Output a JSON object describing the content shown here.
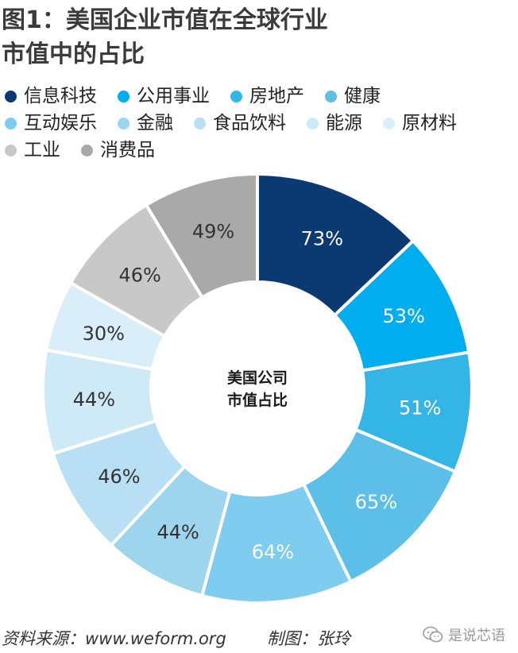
{
  "title": {
    "line1": "图1：美国企业市值在全球行业",
    "line2": "市值中的占比"
  },
  "legend": [
    {
      "label": "信息科技",
      "color": "#0b3a73"
    },
    {
      "label": "公用事业",
      "color": "#00aeef"
    },
    {
      "label": "房地产",
      "color": "#33b5e6"
    },
    {
      "label": "健康",
      "color": "#5bbfe8"
    },
    {
      "label": "互动娱乐",
      "color": "#7ecdf0"
    },
    {
      "label": "金融",
      "color": "#9dd5ef"
    },
    {
      "label": "食品饮料",
      "color": "#b8dff3"
    },
    {
      "label": "能源",
      "color": "#cfeaf7"
    },
    {
      "label": "原材料",
      "color": "#d9eef8"
    },
    {
      "label": "工业",
      "color": "#c8c8c8"
    },
    {
      "label": "消费品",
      "color": "#a9a9a9"
    }
  ],
  "chart_data": {
    "type": "pie",
    "donut": true,
    "center_text": [
      "美国公司",
      "市值占比"
    ],
    "categories": [
      "信息科技",
      "公用事业",
      "房地产",
      "健康",
      "互动娱乐",
      "金融",
      "食品饮料",
      "能源",
      "原材料",
      "工业",
      "消费品"
    ],
    "values": [
      73,
      53,
      51,
      65,
      64,
      44,
      46,
      44,
      30,
      46,
      49
    ],
    "value_labels": [
      "73%",
      "53%",
      "51%",
      "65%",
      "64%",
      "44%",
      "46%",
      "44%",
      "30%",
      "46%",
      "49%"
    ],
    "colors": [
      "#0b3a73",
      "#00aeef",
      "#33b5e6",
      "#5bbfe8",
      "#7ecdf0",
      "#9dd5ef",
      "#b8dff3",
      "#cfeaf7",
      "#d9eef8",
      "#c8c8c8",
      "#a9a9a9"
    ],
    "label_colors": [
      "#ffffff",
      "#ffffff",
      "#ffffff",
      "#ffffff",
      "#ffffff",
      "#333333",
      "#333333",
      "#333333",
      "#333333",
      "#333333",
      "#333333"
    ]
  },
  "footer": {
    "source": "资料来源：www.weform.org",
    "credit": "制图：张玲",
    "watermark": "是说芯语"
  }
}
